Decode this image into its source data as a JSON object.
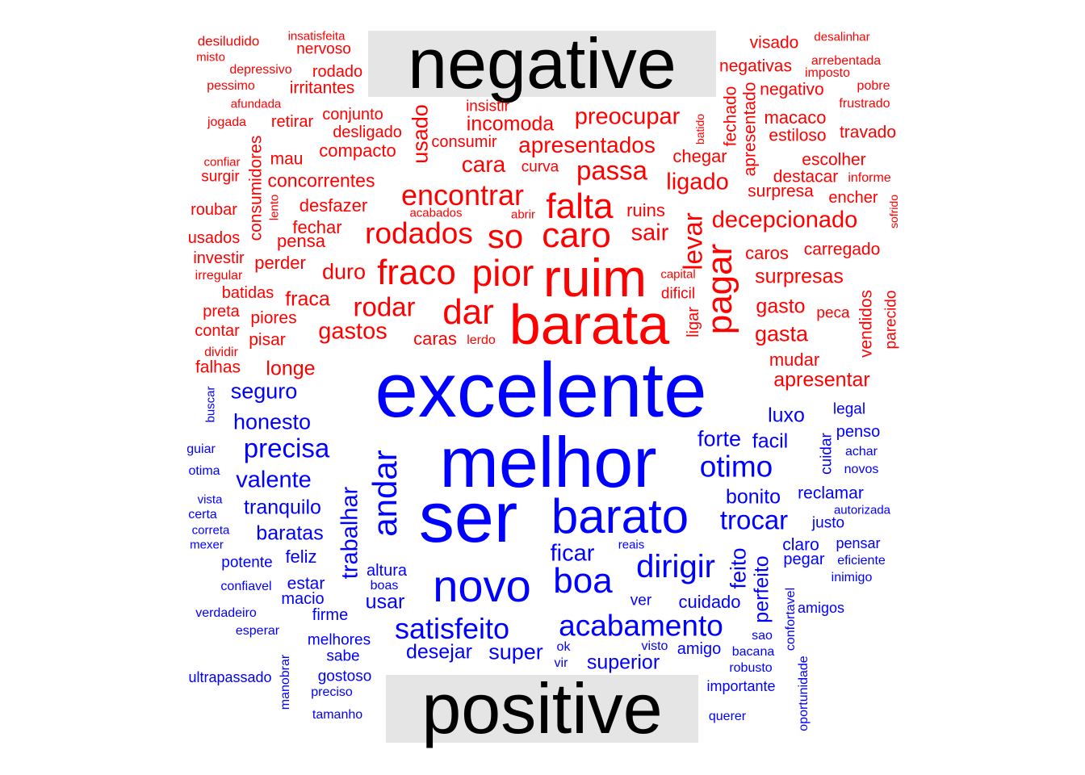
{
  "labels": {
    "negative": "negative",
    "positive": "positive"
  },
  "colors": {
    "negative": "#ff0000",
    "positive": "#0000ff",
    "label_bg": "#e5e5e5",
    "label_text": "#000000"
  },
  "words": {
    "negative": [
      "desiludido",
      "insatisfeita",
      "nervoso",
      "misto",
      "depressivo",
      "rodado",
      "pessimo",
      "irritantes",
      "afundada",
      "jogada",
      "conjunto",
      "retirar",
      "desligado",
      "insistir",
      "usado",
      "incomoda",
      "preocupar",
      "batido",
      "fechado",
      "apresentado",
      "visado",
      "desalinhar",
      "negativas",
      "arrebentada",
      "imposto",
      "negativo",
      "pobre",
      "frustrado",
      "macaco",
      "estiloso",
      "travado",
      "confiar",
      "surgir",
      "consumidores",
      "mau",
      "compacto",
      "consumir",
      "apresentados",
      "curva",
      "chegar",
      "escolher",
      "destacar",
      "informe",
      "concorrentes",
      "cara",
      "passa",
      "ligado",
      "surpresa",
      "encher",
      "lento",
      "roubar",
      "desfazer",
      "encontrar",
      "acabados",
      "abrir",
      "ruins",
      "decepcionado",
      "sofrido",
      "usados",
      "fechar",
      "rodados",
      "so",
      "falta",
      "caro",
      "sair",
      "carregado",
      "pensa",
      "levar",
      "investir",
      "perder",
      "caros",
      "irregular",
      "duro",
      "fraco",
      "pior",
      "ruim",
      "capital",
      "pagar",
      "surpresas",
      "batidas",
      "dificil",
      "preta",
      "fraca",
      "rodar",
      "dar",
      "barata",
      "gasto",
      "peca",
      "vendidos",
      "parecido",
      "piores",
      "contar",
      "gastos",
      "ligar",
      "gasta",
      "pisar",
      "caras",
      "lerdo",
      "dividir",
      "mudar",
      "falhas",
      "longe",
      "apresentar"
    ],
    "positive": [
      "excelente",
      "seguro",
      "honesto",
      "buscar",
      "luxo",
      "legal",
      "penso",
      "melhor",
      "precisa",
      "forte",
      "facil",
      "andar",
      "cuidar",
      "achar",
      "guiar",
      "otimo",
      "otima",
      "novos",
      "valente",
      "vista",
      "bonito",
      "reclamar",
      "certa",
      "tranquilo",
      "ser",
      "barato",
      "trabalhar",
      "autorizada",
      "trocar",
      "correta",
      "baratas",
      "justo",
      "mexer",
      "reais",
      "claro",
      "pensar",
      "dirigir",
      "potente",
      "feliz",
      "ficar",
      "pegar",
      "eficiente",
      "altura",
      "feito",
      "novo",
      "boa",
      "inimigo",
      "confiavel",
      "estar",
      "boas",
      "macio",
      "usar",
      "perfeito",
      "confortavel",
      "verdadeiro",
      "cuidado",
      "amigos",
      "ver",
      "firme",
      "esperar",
      "satisfeito",
      "acabamento",
      "melhores",
      "sao",
      "visto",
      "ok",
      "bacana",
      "amigo",
      "desejar",
      "super",
      "manobrar",
      "sabe",
      "robusto",
      "vir",
      "superior",
      "ultrapassado",
      "gostoso",
      "importante",
      "oportunidade",
      "preciso",
      "querer",
      "tamanho"
    ]
  }
}
